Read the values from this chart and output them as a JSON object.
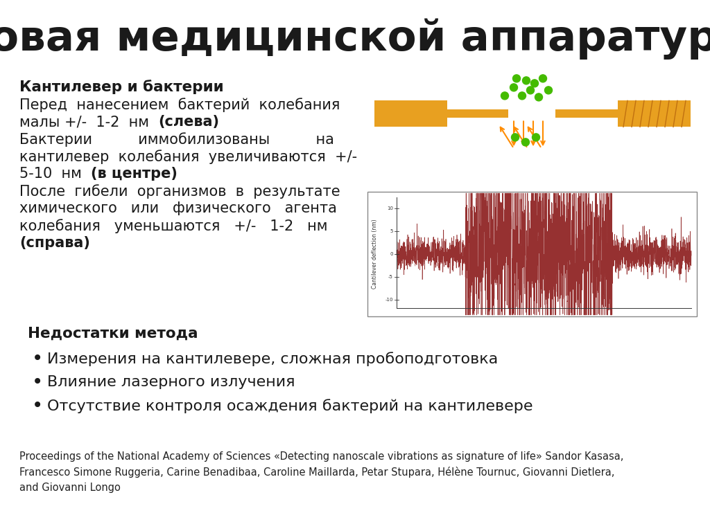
{
  "title": "Новая медицинской аппаратуры",
  "title_fontsize": 44,
  "bg_color": "#ffffff",
  "text_color": "#1a1a1a",
  "section1_bold": "Кантилевер и бактерии",
  "section2_bold": "Недостатки метода",
  "bullets": [
    "Измерения на кантилевере, сложная пробоподготовка",
    "Влияние лазерного излучения",
    "Отсутствие контроля осаждения бактерий на кантилевере"
  ],
  "reference": "Proceedings of the National Academy of Sciences «Detecting nanoscale vibrations as signature of life» Sandor Kasasa,\nFrancesco Simone Ruggeria, Carine Benadibaa, Caroline Maillarda, Petar Stupara, Hélène Tournuc, Giovanni Dietlera,\nand Giovanni Longo",
  "ref_fontsize": 10.5,
  "body_fontsize": 15.0,
  "bold_fontsize": 15.5,
  "bullet_fontsize": 16.0,
  "platform_color": "#E8A020",
  "cantilever_color": "#E8A020",
  "bacteria_color": "#44BB00",
  "arrow_color": "#FF8C00",
  "wave_color": "#8B1A1A",
  "dark_gray": "#333333"
}
